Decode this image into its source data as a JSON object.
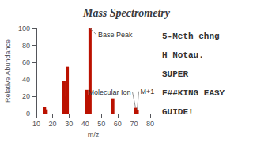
{
  "chart_data": {
    "type": "bar",
    "title": "Mass Spectrometry",
    "x": [
      15,
      16,
      27,
      28,
      29,
      41,
      42,
      43,
      57,
      71,
      72
    ],
    "values": [
      8,
      5,
      38,
      20,
      55,
      28,
      22,
      100,
      18,
      7,
      4
    ],
    "color": "#bb1100",
    "xlabel": "m/z",
    "ylabel": "Relative Abundance",
    "xlim": [
      10,
      80
    ],
    "ylim": [
      0,
      100
    ],
    "xticks": [
      10,
      20,
      30,
      40,
      50,
      60,
      70,
      80
    ],
    "yticks": [
      0,
      20,
      40,
      60,
      80,
      100
    ],
    "grid": false,
    "annotations": [
      {
        "text": "Base Peak",
        "x": 43,
        "y": 100
      },
      {
        "text": "Molecular Ion",
        "x": 71,
        "y": 7
      },
      {
        "text": "M+1",
        "x": 72,
        "y": 4
      },
      {
        "text": "5-Meth chng"
      },
      {
        "text": "H Notau."
      },
      {
        "text": "SUPER"
      },
      {
        "text": "F##KING EASY"
      },
      {
        "text": "GUIDE!"
      }
    ]
  }
}
